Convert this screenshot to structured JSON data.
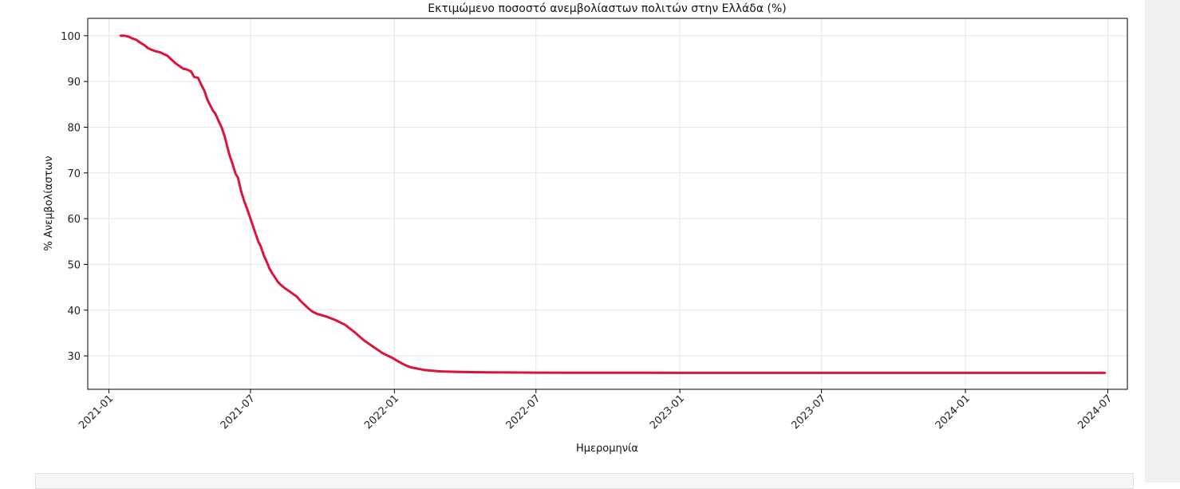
{
  "chart_data": {
    "type": "line",
    "title": "Εκτιμώμενο ποσοστό ανεμβολίαστων πολιτών στην Ελλάδα (%)",
    "xlabel": "Ημερομηνία",
    "ylabel": "% Ανεμβολίαστων",
    "xlim": [
      "2020-12-05",
      "2024-07-26"
    ],
    "ylim": [
      22.7,
      103.8
    ],
    "x_ticks": [
      "2021-01",
      "2021-07",
      "2022-01",
      "2022-07",
      "2023-01",
      "2023-07",
      "2024-01",
      "2024-07"
    ],
    "y_ticks": [
      30,
      40,
      50,
      60,
      70,
      80,
      90,
      100
    ],
    "grid": true,
    "line_color": "#dc143c",
    "series": [
      {
        "x": [
          "2021-01-16",
          "2021-01-21",
          "2021-01-26",
          "2021-01-31",
          "2021-02-05",
          "2021-02-10",
          "2021-02-15",
          "2021-02-20",
          "2021-02-25",
          "2021-03-02",
          "2021-03-07",
          "2021-03-12",
          "2021-03-17",
          "2021-03-22",
          "2021-03-27",
          "2021-04-01",
          "2021-04-06",
          "2021-04-11",
          "2021-04-16",
          "2021-04-20",
          "2021-04-25",
          "2021-04-30",
          "2021-05-03",
          "2021-05-07",
          "2021-05-10",
          "2021-05-14",
          "2021-05-17",
          "2021-05-21",
          "2021-05-25",
          "2021-05-29",
          "2021-06-01",
          "2021-06-04",
          "2021-06-08",
          "2021-06-12",
          "2021-06-15",
          "2021-06-19",
          "2021-06-23",
          "2021-06-26",
          "2021-06-30",
          "2021-07-03",
          "2021-07-07",
          "2021-07-11",
          "2021-07-14",
          "2021-07-18",
          "2021-07-22",
          "2021-07-25",
          "2021-07-29",
          "2021-08-02",
          "2021-08-05",
          "2021-08-09",
          "2021-08-14",
          "2021-08-19",
          "2021-08-24",
          "2021-08-29",
          "2021-09-03",
          "2021-09-08",
          "2021-09-13",
          "2021-09-18",
          "2021-09-24",
          "2021-09-30",
          "2021-10-06",
          "2021-10-12",
          "2021-10-18",
          "2021-10-24",
          "2021-10-30",
          "2021-11-05",
          "2021-11-11",
          "2021-11-17",
          "2021-11-23",
          "2021-11-29",
          "2021-12-05",
          "2021-12-11",
          "2021-12-17",
          "2021-12-23",
          "2021-12-29",
          "2022-01-04",
          "2022-01-10",
          "2022-01-16",
          "2022-01-22",
          "2022-01-28",
          "2022-02-03",
          "2022-02-09",
          "2022-02-16",
          "2022-02-23",
          "2022-03-02",
          "2022-03-12",
          "2022-03-25",
          "2022-04-10",
          "2022-04-30",
          "2022-05-25",
          "2022-07-01",
          "2022-08-15",
          "2022-10-01",
          "2022-11-15",
          "2023-01-01",
          "2023-04-01",
          "2023-07-01",
          "2023-10-01",
          "2024-01-01",
          "2024-04-01",
          "2024-06-27"
        ],
        "y": [
          100.0,
          100.0,
          99.8,
          99.4,
          99.1,
          98.5,
          98.0,
          97.3,
          96.9,
          96.6,
          96.4,
          96.0,
          95.6,
          94.8,
          94.0,
          93.4,
          92.8,
          92.6,
          92.2,
          91.0,
          90.8,
          89.0,
          88.0,
          86.0,
          85.0,
          83.6,
          83.0,
          81.5,
          80.0,
          78.0,
          76.0,
          74.0,
          72.0,
          69.8,
          69.0,
          66.0,
          63.8,
          62.5,
          60.5,
          59.0,
          57.0,
          55.0,
          54.0,
          52.0,
          50.5,
          49.2,
          48.0,
          47.0,
          46.2,
          45.5,
          44.8,
          44.2,
          43.6,
          43.0,
          42.0,
          41.2,
          40.4,
          39.7,
          39.2,
          38.9,
          38.6,
          38.2,
          37.8,
          37.3,
          36.8,
          36.0,
          35.2,
          34.3,
          33.4,
          32.7,
          32.0,
          31.3,
          30.6,
          30.1,
          29.6,
          29.0,
          28.4,
          27.9,
          27.5,
          27.3,
          27.1,
          26.9,
          26.8,
          26.7,
          26.6,
          26.55,
          26.5,
          26.45,
          26.4,
          26.38,
          26.35,
          26.33,
          26.32,
          26.31,
          26.3,
          26.3,
          26.3,
          26.3,
          26.3,
          26.3,
          26.3
        ]
      }
    ]
  }
}
